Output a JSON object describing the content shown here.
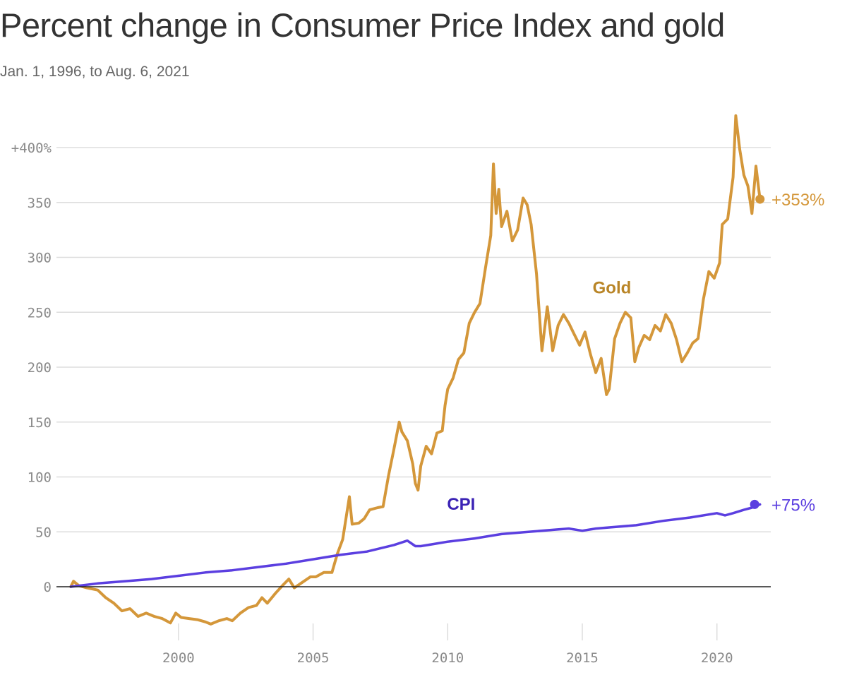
{
  "title": "Percent change in Consumer Price Index and gold",
  "subtitle": "Jan. 1, 1996, to Aug. 6, 2021",
  "colors": {
    "gold": "#D4973A",
    "gold_label": "#B98527",
    "cpi": "#5B3FE0",
    "cpi_label": "#3B23B5",
    "grid": "#dddddd",
    "zero": "#222222"
  },
  "chart_data": {
    "type": "line",
    "ylim": [
      -40,
      430
    ],
    "xlim": [
      1995.6,
      2022.0
    ],
    "y_ticks": [
      {
        "value": 400,
        "label": "+400%"
      },
      {
        "value": 350,
        "label": "350"
      },
      {
        "value": 300,
        "label": "300"
      },
      {
        "value": 250,
        "label": "250"
      },
      {
        "value": 200,
        "label": "200"
      },
      {
        "value": 150,
        "label": "150"
      },
      {
        "value": 100,
        "label": "100"
      },
      {
        "value": 50,
        "label": "50"
      },
      {
        "value": 0,
        "label": "0"
      }
    ],
    "x_ticks": [
      {
        "value": 2000,
        "label": "2000"
      },
      {
        "value": 2005,
        "label": "2005"
      },
      {
        "value": 2010,
        "label": "2010"
      },
      {
        "value": 2015,
        "label": "2015"
      },
      {
        "value": 2020,
        "label": "2020"
      }
    ],
    "series": [
      {
        "name": "Gold",
        "end_label": "+353%",
        "points": [
          [
            1996.0,
            0
          ],
          [
            1996.1,
            5
          ],
          [
            1996.3,
            1
          ],
          [
            1996.6,
            -1
          ],
          [
            1997.0,
            -3
          ],
          [
            1997.3,
            -10
          ],
          [
            1997.6,
            -15
          ],
          [
            1997.9,
            -22
          ],
          [
            1998.2,
            -20
          ],
          [
            1998.5,
            -27
          ],
          [
            1998.8,
            -24
          ],
          [
            1999.1,
            -27
          ],
          [
            1999.4,
            -29
          ],
          [
            1999.7,
            -33
          ],
          [
            1999.9,
            -24
          ],
          [
            2000.1,
            -28
          ],
          [
            2000.4,
            -29
          ],
          [
            2000.7,
            -30
          ],
          [
            2001.0,
            -32
          ],
          [
            2001.2,
            -34
          ],
          [
            2001.5,
            -31
          ],
          [
            2001.8,
            -29
          ],
          [
            2002.0,
            -31
          ],
          [
            2002.3,
            -24
          ],
          [
            2002.6,
            -19
          ],
          [
            2002.9,
            -17
          ],
          [
            2003.1,
            -10
          ],
          [
            2003.3,
            -15
          ],
          [
            2003.6,
            -6
          ],
          [
            2003.9,
            2
          ],
          [
            2004.1,
            7
          ],
          [
            2004.3,
            -1
          ],
          [
            2004.6,
            4
          ],
          [
            2004.9,
            9
          ],
          [
            2005.1,
            9
          ],
          [
            2005.4,
            13
          ],
          [
            2005.7,
            13
          ],
          [
            2005.9,
            30
          ],
          [
            2006.1,
            43
          ],
          [
            2006.35,
            82
          ],
          [
            2006.45,
            57
          ],
          [
            2006.7,
            58
          ],
          [
            2006.9,
            62
          ],
          [
            2007.1,
            70
          ],
          [
            2007.4,
            72
          ],
          [
            2007.6,
            73
          ],
          [
            2007.8,
            101
          ],
          [
            2008.0,
            125
          ],
          [
            2008.2,
            150
          ],
          [
            2008.3,
            141
          ],
          [
            2008.5,
            133
          ],
          [
            2008.7,
            112
          ],
          [
            2008.8,
            94
          ],
          [
            2008.9,
            88
          ],
          [
            2009.0,
            110
          ],
          [
            2009.2,
            128
          ],
          [
            2009.4,
            121
          ],
          [
            2009.6,
            140
          ],
          [
            2009.8,
            142
          ],
          [
            2009.9,
            165
          ],
          [
            2010.0,
            180
          ],
          [
            2010.2,
            190
          ],
          [
            2010.4,
            207
          ],
          [
            2010.6,
            213
          ],
          [
            2010.8,
            240
          ],
          [
            2011.0,
            250
          ],
          [
            2011.2,
            258
          ],
          [
            2011.4,
            290
          ],
          [
            2011.6,
            320
          ],
          [
            2011.7,
            385
          ],
          [
            2011.8,
            340
          ],
          [
            2011.9,
            362
          ],
          [
            2012.0,
            328
          ],
          [
            2012.2,
            342
          ],
          [
            2012.4,
            315
          ],
          [
            2012.6,
            325
          ],
          [
            2012.8,
            354
          ],
          [
            2012.95,
            348
          ],
          [
            2013.1,
            330
          ],
          [
            2013.3,
            285
          ],
          [
            2013.5,
            215
          ],
          [
            2013.7,
            255
          ],
          [
            2013.9,
            215
          ],
          [
            2014.1,
            238
          ],
          [
            2014.3,
            248
          ],
          [
            2014.5,
            240
          ],
          [
            2014.7,
            230
          ],
          [
            2014.9,
            220
          ],
          [
            2015.1,
            232
          ],
          [
            2015.3,
            212
          ],
          [
            2015.5,
            195
          ],
          [
            2015.7,
            208
          ],
          [
            2015.9,
            175
          ],
          [
            2016.0,
            180
          ],
          [
            2016.2,
            226
          ],
          [
            2016.4,
            240
          ],
          [
            2016.6,
            250
          ],
          [
            2016.8,
            245
          ],
          [
            2016.95,
            205
          ],
          [
            2017.1,
            218
          ],
          [
            2017.3,
            229
          ],
          [
            2017.5,
            225
          ],
          [
            2017.7,
            238
          ],
          [
            2017.9,
            233
          ],
          [
            2018.1,
            248
          ],
          [
            2018.3,
            240
          ],
          [
            2018.5,
            225
          ],
          [
            2018.7,
            205
          ],
          [
            2018.9,
            213
          ],
          [
            2019.1,
            222
          ],
          [
            2019.3,
            226
          ],
          [
            2019.5,
            262
          ],
          [
            2019.7,
            287
          ],
          [
            2019.9,
            281
          ],
          [
            2020.1,
            295
          ],
          [
            2020.2,
            330
          ],
          [
            2020.4,
            335
          ],
          [
            2020.6,
            373
          ],
          [
            2020.7,
            429
          ],
          [
            2020.85,
            398
          ],
          [
            2021.0,
            375
          ],
          [
            2021.15,
            365
          ],
          [
            2021.3,
            340
          ],
          [
            2021.45,
            383
          ],
          [
            2021.6,
            353
          ]
        ]
      },
      {
        "name": "CPI",
        "end_label": "+75%",
        "points": [
          [
            1996.0,
            0
          ],
          [
            1997.0,
            3
          ],
          [
            1998.0,
            5
          ],
          [
            1999.0,
            7
          ],
          [
            2000.0,
            10
          ],
          [
            2001.0,
            13
          ],
          [
            2002.0,
            15
          ],
          [
            2003.0,
            18
          ],
          [
            2004.0,
            21
          ],
          [
            2005.0,
            25
          ],
          [
            2006.0,
            29
          ],
          [
            2007.0,
            32
          ],
          [
            2008.0,
            38
          ],
          [
            2008.5,
            42
          ],
          [
            2008.8,
            37
          ],
          [
            2009.0,
            37
          ],
          [
            2009.5,
            39
          ],
          [
            2010.0,
            41
          ],
          [
            2011.0,
            44
          ],
          [
            2012.0,
            48
          ],
          [
            2013.0,
            50
          ],
          [
            2014.0,
            52
          ],
          [
            2014.5,
            53
          ],
          [
            2015.0,
            51
          ],
          [
            2015.5,
            53
          ],
          [
            2016.0,
            54
          ],
          [
            2017.0,
            56
          ],
          [
            2018.0,
            60
          ],
          [
            2019.0,
            63
          ],
          [
            2020.0,
            67
          ],
          [
            2020.3,
            65
          ],
          [
            2020.6,
            67
          ],
          [
            2021.0,
            70
          ],
          [
            2021.3,
            72
          ],
          [
            2021.6,
            75
          ]
        ]
      }
    ]
  }
}
